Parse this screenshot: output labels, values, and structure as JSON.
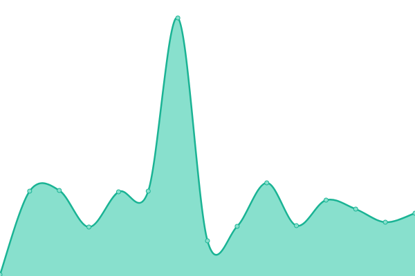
{
  "chart_data": {
    "type": "area",
    "categories": [
      null,
      null,
      null,
      null,
      null,
      null,
      null,
      null,
      null,
      null,
      null,
      null,
      null,
      null,
      null
    ],
    "values": [
      2,
      123,
      124,
      71,
      122,
      123,
      374,
      51,
      72,
      135,
      73,
      110,
      97,
      78,
      91
    ],
    "color": "#1ab394",
    "fill_color": "#88e0cd",
    "ylim": [
      0,
      400
    ]
  }
}
